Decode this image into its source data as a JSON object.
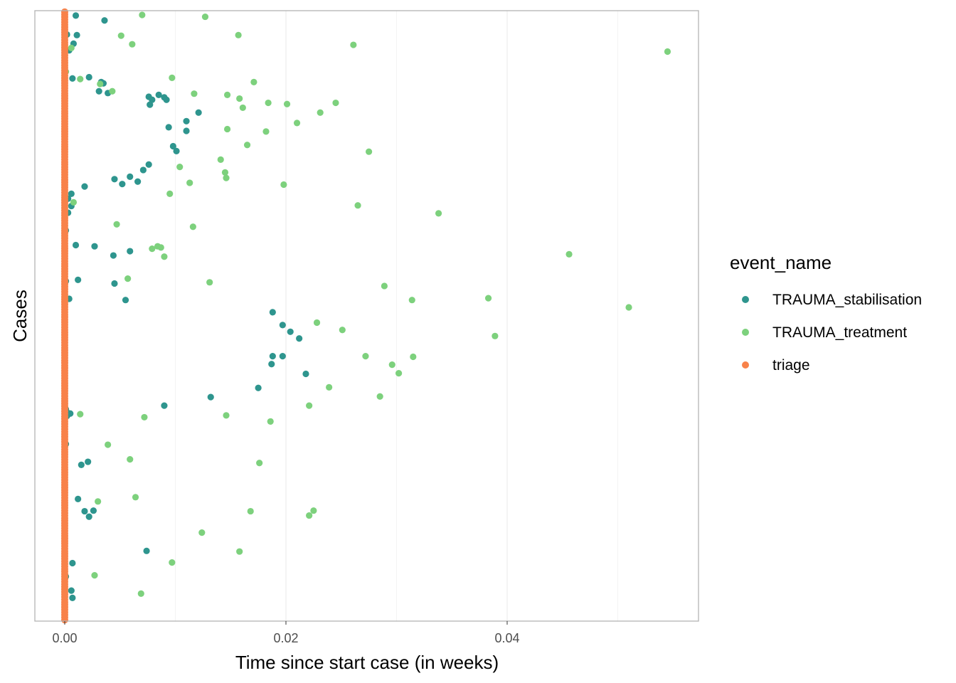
{
  "chart_data": {
    "type": "scatter",
    "title": "",
    "xlabel": "Time since start case (in weeks)",
    "ylabel": "Cases",
    "xlim": [
      -0.0027,
      0.0573
    ],
    "ylim": [
      0,
      100
    ],
    "xticks": [
      0.0,
      0.02,
      0.04
    ],
    "xtick_labels": [
      "0.00",
      "0.02",
      "0.04"
    ],
    "grid": "vertical major gridlines",
    "legend": {
      "title": "event_name",
      "position": "right",
      "entries": [
        "TRAUMA_stabilisation",
        "TRAUMA_treatment",
        "triage"
      ]
    },
    "colors": {
      "TRAUMA_stabilisation": "#2e958e",
      "TRAUMA_treatment": "#7dd17d",
      "triage": "#f8824a"
    },
    "series": [
      {
        "name": "TRAUMA_stabilisation",
        "points": [
          [
            0.001,
            99.2
          ],
          [
            0.0036,
            98.4
          ],
          [
            0.0002,
            96.1
          ],
          [
            0.0011,
            96.0
          ],
          [
            0.0008,
            94.6
          ],
          [
            0.0004,
            93.5
          ],
          [
            0.0007,
            88.9
          ],
          [
            0.0022,
            89.1
          ],
          [
            0.0033,
            88.3
          ],
          [
            0.0035,
            88.1
          ],
          [
            0.0031,
            86.8
          ],
          [
            0.0039,
            86.5
          ],
          [
            0.0076,
            85.9
          ],
          [
            0.0085,
            86.2
          ],
          [
            0.009,
            85.8
          ],
          [
            0.0079,
            85.4
          ],
          [
            0.0077,
            84.6
          ],
          [
            0.0092,
            85.4
          ],
          [
            0.0121,
            83.3
          ],
          [
            0.011,
            81.9
          ],
          [
            0.0094,
            80.9
          ],
          [
            0.011,
            80.3
          ],
          [
            0.0098,
            77.8
          ],
          [
            0.0101,
            77.0
          ],
          [
            0.0076,
            74.8
          ],
          [
            0.0071,
            73.9
          ],
          [
            0.0059,
            72.8
          ],
          [
            0.0066,
            72.0
          ],
          [
            0.0045,
            72.4
          ],
          [
            0.0052,
            71.6
          ],
          [
            0.0018,
            71.2
          ],
          [
            0.0006,
            70.0
          ],
          [
            0.0003,
            69.2
          ],
          [
            0.0006,
            68.0
          ],
          [
            0.0003,
            66.9
          ],
          [
            0.0001,
            64.0
          ],
          [
            0.001,
            61.6
          ],
          [
            0.0027,
            61.4
          ],
          [
            0.0059,
            60.6
          ],
          [
            0.0044,
            59.9
          ],
          [
            0.0001,
            55.7
          ],
          [
            0.0012,
            55.9
          ],
          [
            0.0045,
            55.3
          ],
          [
            0.0055,
            52.6
          ],
          [
            0.0004,
            52.8
          ],
          [
            0.0188,
            50.6
          ],
          [
            0.0197,
            48.5
          ],
          [
            0.0204,
            47.4
          ],
          [
            0.0212,
            46.3
          ],
          [
            0.0188,
            43.4
          ],
          [
            0.0197,
            43.4
          ],
          [
            0.0187,
            42.1
          ],
          [
            0.0218,
            40.5
          ],
          [
            0.0175,
            38.2
          ],
          [
            0.0132,
            36.7
          ],
          [
            0.009,
            35.3
          ],
          [
            0.0001,
            34.7
          ],
          [
            0.0002,
            34.2
          ],
          [
            0.0005,
            34.0
          ],
          [
            0.0002,
            33.6
          ],
          [
            0.0001,
            29.0
          ],
          [
            0.0021,
            26.1
          ],
          [
            0.0015,
            25.6
          ],
          [
            0.0012,
            20.0
          ],
          [
            0.0,
            19.1
          ],
          [
            0.0018,
            18.0
          ],
          [
            0.0026,
            18.1
          ],
          [
            0.0022,
            17.1
          ],
          [
            0.0074,
            11.5
          ],
          [
            0.0,
            9.3
          ],
          [
            0.0007,
            9.5
          ],
          [
            0.0001,
            7.3
          ],
          [
            0.0006,
            5.0
          ],
          [
            0.0007,
            3.8
          ]
        ]
      },
      {
        "name": "TRAUMA_treatment",
        "points": [
          [
            0.007,
            99.3
          ],
          [
            0.0127,
            99.0
          ],
          [
            0.0051,
            95.9
          ],
          [
            0.0157,
            96.0
          ],
          [
            0.0061,
            94.5
          ],
          [
            0.0261,
            94.4
          ],
          [
            0.0545,
            93.3
          ],
          [
            0.0006,
            93.9
          ],
          [
            0.0001,
            90.0
          ],
          [
            0.0097,
            89.0
          ],
          [
            0.0014,
            88.8
          ],
          [
            0.0171,
            88.3
          ],
          [
            0.0032,
            88.0
          ],
          [
            0.0043,
            86.8
          ],
          [
            0.0117,
            86.4
          ],
          [
            0.0147,
            86.2
          ],
          [
            0.0158,
            85.6
          ],
          [
            0.0184,
            84.9
          ],
          [
            0.0201,
            84.7
          ],
          [
            0.0245,
            84.9
          ],
          [
            0.0161,
            84.1
          ],
          [
            0.0231,
            83.3
          ],
          [
            0.021,
            81.6
          ],
          [
            0.0147,
            80.6
          ],
          [
            0.0182,
            80.2
          ],
          [
            0.0165,
            78.0
          ],
          [
            0.0275,
            76.9
          ],
          [
            0.0141,
            75.6
          ],
          [
            0.0104,
            74.4
          ],
          [
            0.0145,
            73.5
          ],
          [
            0.0146,
            72.6
          ],
          [
            0.0113,
            71.8
          ],
          [
            0.0198,
            71.5
          ],
          [
            0.0095,
            70.0
          ],
          [
            0.0008,
            68.6
          ],
          [
            0.0265,
            68.1
          ],
          [
            0.0338,
            66.8
          ],
          [
            0.0047,
            65.0
          ],
          [
            0.0116,
            64.6
          ],
          [
            0.0084,
            61.4
          ],
          [
            0.0087,
            61.2
          ],
          [
            0.0079,
            61.0
          ],
          [
            0.0456,
            60.1
          ],
          [
            0.009,
            59.7
          ],
          [
            0.0057,
            56.1
          ],
          [
            0.0131,
            55.5
          ],
          [
            0.0289,
            54.9
          ],
          [
            0.0383,
            52.9
          ],
          [
            0.0314,
            52.6
          ],
          [
            0.051,
            51.4
          ],
          [
            0.0228,
            48.9
          ],
          [
            0.0251,
            47.7
          ],
          [
            0.0389,
            46.7
          ],
          [
            0.0272,
            43.4
          ],
          [
            0.0296,
            42.0
          ],
          [
            0.0315,
            43.3
          ],
          [
            0.0302,
            40.6
          ],
          [
            0.0239,
            38.3
          ],
          [
            0.0285,
            36.8
          ],
          [
            0.0221,
            35.3
          ],
          [
            0.0146,
            33.7
          ],
          [
            0.0014,
            33.9
          ],
          [
            0.0072,
            33.4
          ],
          [
            0.0186,
            32.7
          ],
          [
            0.0039,
            28.9
          ],
          [
            0.0059,
            26.5
          ],
          [
            0.0176,
            25.9
          ],
          [
            0.0064,
            20.3
          ],
          [
            0.003,
            19.6
          ],
          [
            0.0225,
            18.1
          ],
          [
            0.0168,
            18.0
          ],
          [
            0.0221,
            17.3
          ],
          [
            0.0124,
            14.5
          ],
          [
            0.0158,
            11.4
          ],
          [
            0.0097,
            9.6
          ],
          [
            0.0027,
            7.5
          ],
          [
            0.0069,
            4.5
          ]
        ]
      },
      {
        "name": "triage",
        "x": 0.0,
        "y_range": [
          0,
          100
        ],
        "note": "one point per case at time 0"
      }
    ]
  }
}
